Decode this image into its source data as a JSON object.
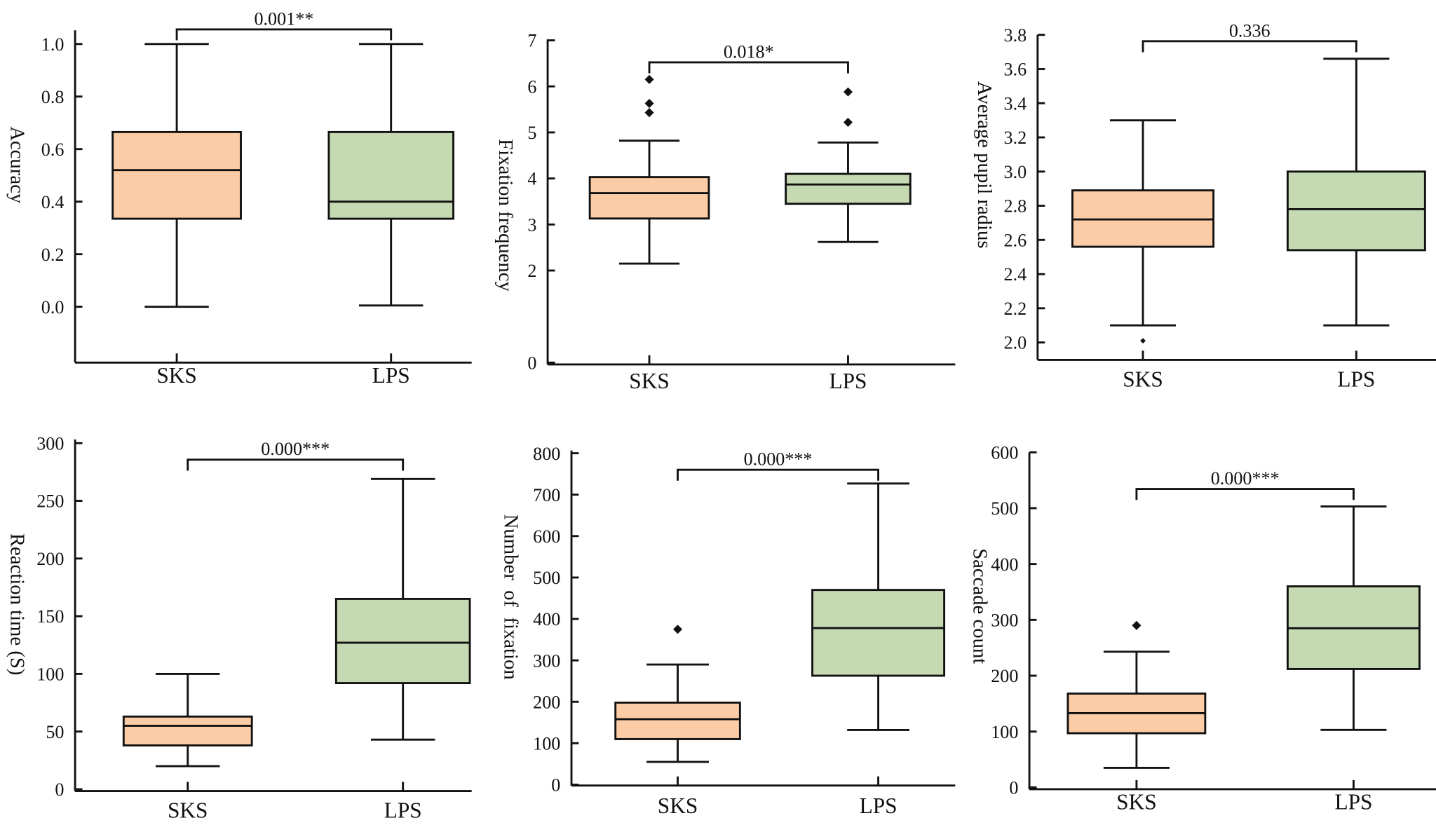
{
  "colors": {
    "SKS": "#fbcca6",
    "LPS": "#c5dab2",
    "stroke": "#111111"
  },
  "chart_data": [
    {
      "type": "box",
      "ylabel": "Accuracy",
      "categories": [
        "SKS",
        "LPS"
      ],
      "yticks": [
        "0.0",
        "0.2",
        "0.4",
        "0.6",
        "0.8",
        "1.0"
      ],
      "ylim": [
        -0.2,
        1.05
      ],
      "grid": false,
      "series": [
        {
          "category": "SKS",
          "min": 0.0,
          "q1": 0.335,
          "median": 0.52,
          "q3": 0.665,
          "max": 1.0,
          "outliers": []
        },
        {
          "category": "LPS",
          "min": 0.005,
          "q1": 0.335,
          "median": 0.4,
          "q3": 0.665,
          "max": 1.0,
          "outliers": []
        }
      ],
      "significance": "0.001**"
    },
    {
      "type": "box",
      "ylabel": "Fixation frequency",
      "categories": [
        "SKS",
        "LPS"
      ],
      "yticks": [
        "0",
        "2",
        "3",
        "4",
        "5",
        "6",
        "7"
      ],
      "ylim": [
        0,
        7
      ],
      "grid": false,
      "series": [
        {
          "category": "SKS",
          "min": 2.15,
          "q1": 3.13,
          "median": 3.68,
          "q3": 4.03,
          "max": 4.82,
          "outliers": [
            6.15,
            5.63,
            5.43
          ]
        },
        {
          "category": "LPS",
          "min": 2.62,
          "q1": 3.45,
          "median": 3.87,
          "q3": 4.1,
          "max": 4.78,
          "outliers": [
            5.88,
            5.22
          ]
        }
      ],
      "significance": "0.018*"
    },
    {
      "type": "box",
      "ylabel": "Average pupil radius",
      "categories": [
        "SKS",
        "LPS"
      ],
      "yticks": [
        "2.0",
        "2.2",
        "2.4",
        "2.6",
        "2.8",
        "3.0",
        "3.2",
        "3.4",
        "3.6",
        "3.8"
      ],
      "ylim": [
        1.9,
        3.8
      ],
      "grid": false,
      "series": [
        {
          "category": "SKS",
          "min": 2.1,
          "q1": 2.56,
          "median": 2.72,
          "q3": 2.89,
          "max": 3.3,
          "outliers": [
            2.01
          ]
        },
        {
          "category": "LPS",
          "min": 2.1,
          "q1": 2.54,
          "median": 2.78,
          "q3": 3.0,
          "max": 3.66,
          "outliers": []
        }
      ],
      "significance": "0.336"
    },
    {
      "type": "box",
      "ylabel": "Reaction time (S)",
      "categories": [
        "SKS",
        "LPS"
      ],
      "yticks": [
        "0",
        "50",
        "100",
        "150",
        "200",
        "250",
        "300"
      ],
      "ylim": [
        0,
        300
      ],
      "grid": false,
      "series": [
        {
          "category": "SKS",
          "min": 20,
          "q1": 38,
          "median": 55,
          "q3": 63,
          "max": 100,
          "outliers": []
        },
        {
          "category": "LPS",
          "min": 43,
          "q1": 92,
          "median": 127,
          "q3": 165,
          "max": 269,
          "outliers": []
        }
      ],
      "significance": "0.000***"
    },
    {
      "type": "box",
      "ylabel": "Number  of  fixation",
      "categories": [
        "SKS",
        "LPS"
      ],
      "yticks": [
        "0",
        "100",
        "200",
        "300",
        "400",
        "500",
        "600",
        "700",
        "800"
      ],
      "ylim": [
        0,
        800
      ],
      "grid": false,
      "series": [
        {
          "category": "SKS",
          "min": 55,
          "q1": 110,
          "median": 158,
          "q3": 198,
          "max": 290,
          "outliers": [
            375
          ]
        },
        {
          "category": "LPS",
          "min": 132,
          "q1": 263,
          "median": 378,
          "q3": 470,
          "max": 727,
          "outliers": []
        }
      ],
      "significance": "0.000***"
    },
    {
      "type": "box",
      "ylabel": "Saccade count",
      "categories": [
        "SKS",
        "LPS"
      ],
      "yticks": [
        "0",
        "100",
        "200",
        "300",
        "400",
        "500",
        "600"
      ],
      "ylim": [
        0,
        600
      ],
      "grid": false,
      "series": [
        {
          "category": "SKS",
          "min": 35,
          "q1": 97,
          "median": 133,
          "q3": 168,
          "max": 243,
          "outliers": [
            290
          ]
        },
        {
          "category": "LPS",
          "min": 103,
          "q1": 212,
          "median": 285,
          "q3": 360,
          "max": 503,
          "outliers": []
        }
      ],
      "significance": "0.000***"
    }
  ]
}
